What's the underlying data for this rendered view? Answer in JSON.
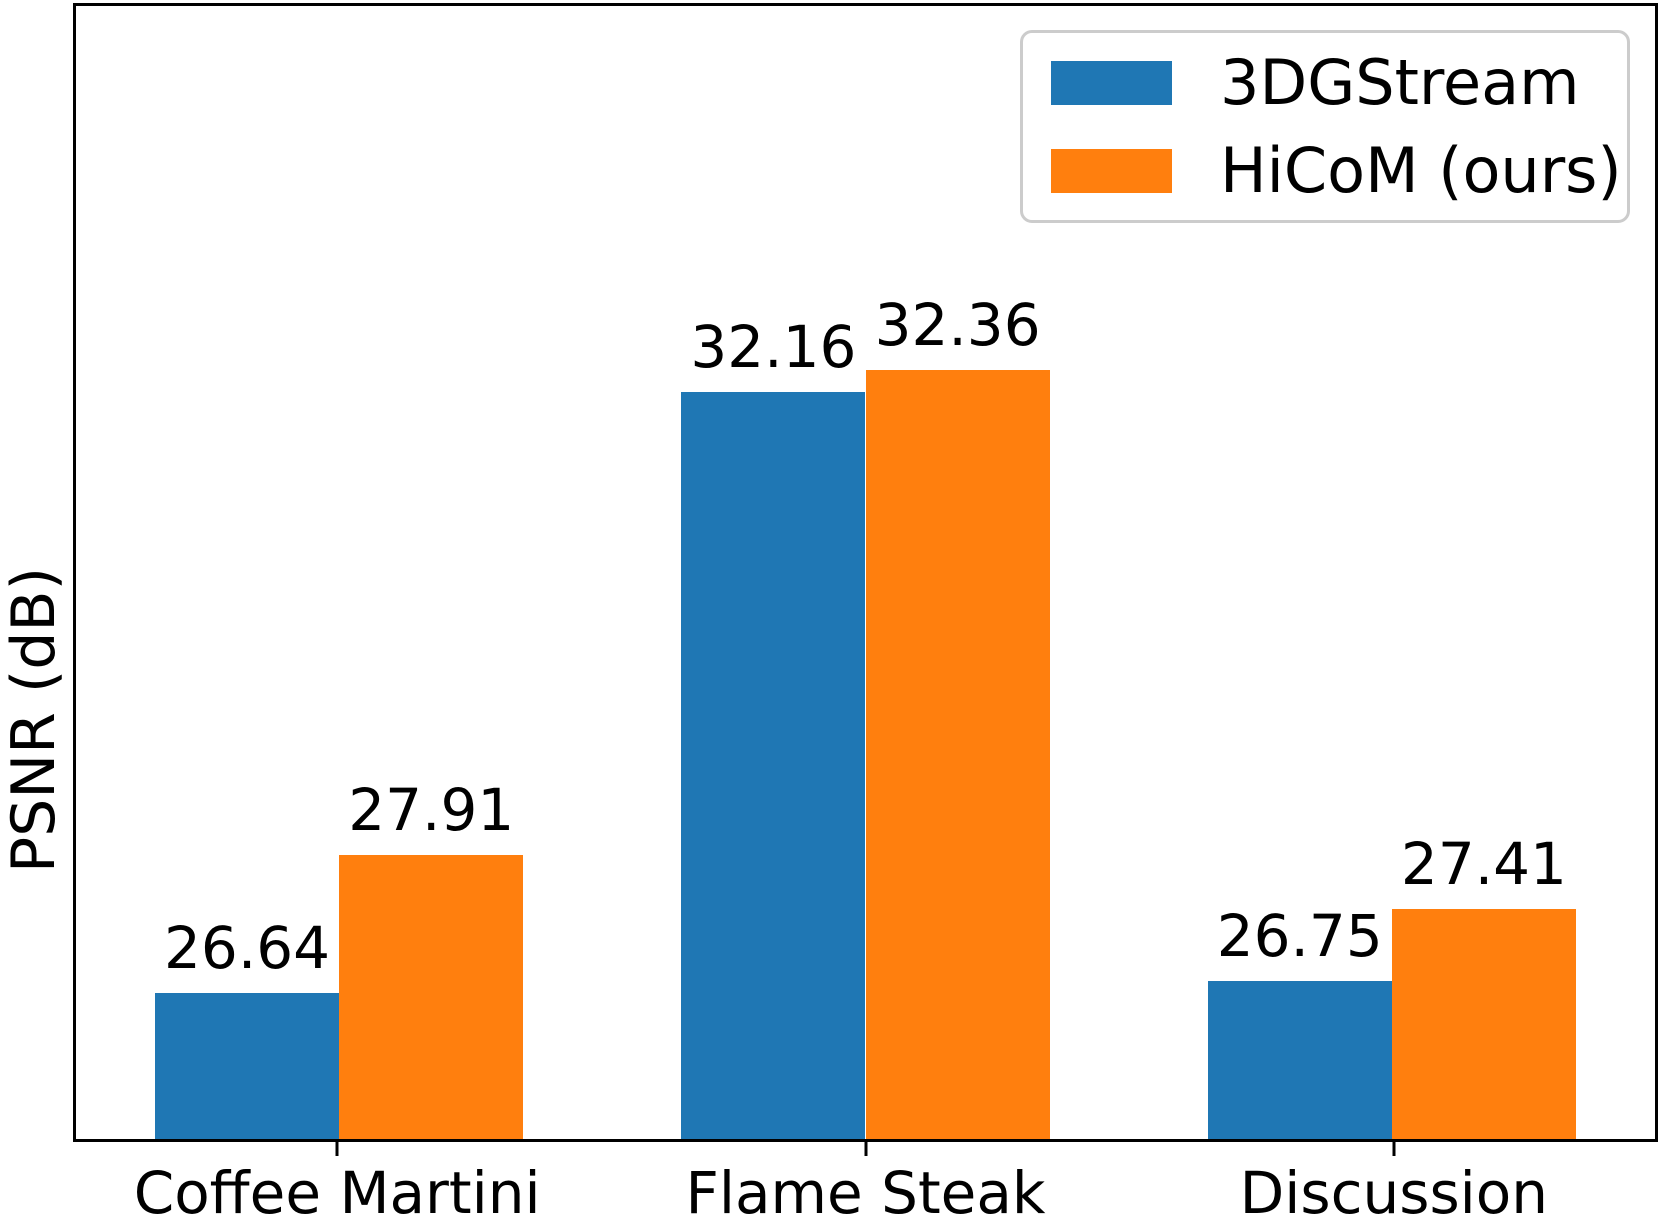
{
  "figure": {
    "background": "#ffffff"
  },
  "chart_data": {
    "type": "bar",
    "title": "",
    "xlabel": "",
    "ylabel": "PSNR (dB)",
    "categories": [
      "Coffee Martini",
      "Flame Steak",
      "Discussion"
    ],
    "series": [
      {
        "name": "3DGStream",
        "color": "#1f77b4",
        "values": [
          26.64,
          32.16,
          26.75
        ]
      },
      {
        "name": "HiCoM (ours)",
        "color": "#ff7f0e",
        "values": [
          27.91,
          32.36,
          27.41
        ]
      }
    ],
    "bar_value_labels": [
      [
        "26.64",
        "32.16",
        "26.75"
      ],
      [
        "27.91",
        "32.36",
        "27.41"
      ]
    ],
    "ylim": [
      25.3,
      35.7
    ],
    "bar_width_fraction": 0.35,
    "grid": false,
    "y_tick_labels_visible": false,
    "legend_position": "upper right",
    "axis_color": "#000000",
    "legend_border_color": "#cccccc"
  }
}
